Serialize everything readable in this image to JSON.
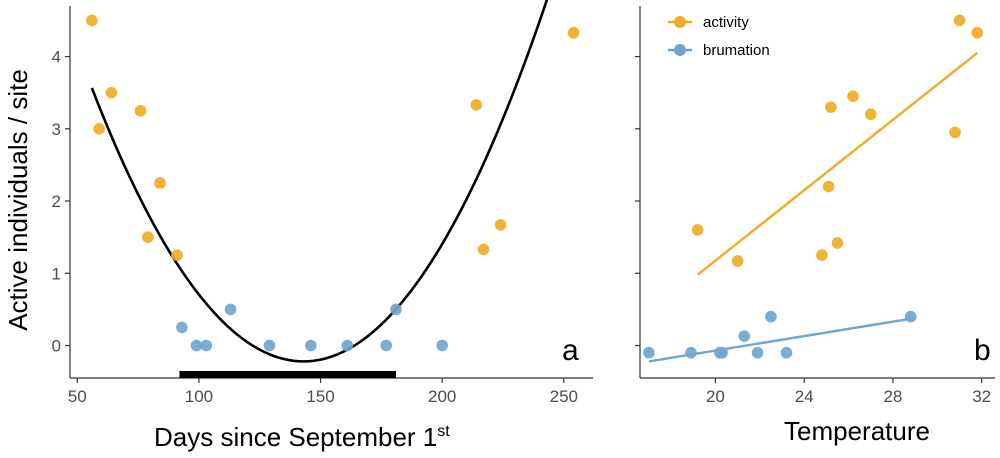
{
  "colors": {
    "activity": "#efac24",
    "brumation": "#6fa5d0",
    "fit": "#000000",
    "bar": "#000000"
  },
  "chart_data": [
    {
      "type": "scatter",
      "panel_label": "a",
      "xlabel_main": "Days since September 1",
      "xlabel_sup": "st",
      "ylabel": "Active individuals / site",
      "xlim": [
        47,
        262
      ],
      "ylim": [
        -0.45,
        4.7
      ],
      "xticks": [
        50,
        100,
        150,
        200,
        250
      ],
      "yticks": [
        0,
        1,
        2,
        3,
        4
      ],
      "grid": false,
      "series": [
        {
          "group": "activity",
          "points": [
            [
              56,
              4.5
            ],
            [
              59,
              3.0
            ],
            [
              64,
              3.5
            ],
            [
              76,
              3.25
            ],
            [
              79,
              1.5
            ],
            [
              84,
              2.25
            ],
            [
              91,
              1.25
            ],
            [
              214,
              3.33
            ],
            [
              217,
              1.33
            ],
            [
              224,
              1.67
            ],
            [
              254,
              4.33
            ]
          ]
        },
        {
          "group": "brumation",
          "points": [
            [
              93,
              0.25
            ],
            [
              99,
              0.0
            ],
            [
              103,
              0.0
            ],
            [
              113,
              0.5
            ],
            [
              129,
              0.0
            ],
            [
              146,
              0.0
            ],
            [
              161,
              0.0
            ],
            [
              177,
              0.0
            ],
            [
              181,
              0.5
            ],
            [
              200,
              0.0
            ]
          ]
        }
      ],
      "fit": {
        "kind": "quadratic",
        "vertex_x": 143,
        "vertex_y": -0.22,
        "a": 0.0005,
        "x_range": [
          56,
          255
        ]
      },
      "period_bar": {
        "x_start": 92,
        "x_end": 181
      }
    },
    {
      "type": "scatter",
      "panel_label": "b",
      "xlabel": "Temperature",
      "xlim": [
        16.6,
        32.6
      ],
      "ylim": [
        -0.45,
        4.7
      ],
      "xticks": [
        20,
        24,
        28,
        32
      ],
      "yticks": [
        0,
        1,
        2,
        3,
        4
      ],
      "grid": false,
      "legend_position": "top-left",
      "legend": [
        {
          "key": "activity",
          "label": "activity"
        },
        {
          "key": "brumation",
          "label": "brumation"
        }
      ],
      "series": [
        {
          "group": "activity",
          "points": [
            [
              19.2,
              1.6
            ],
            [
              21.0,
              1.17
            ],
            [
              24.8,
              1.25
            ],
            [
              25.1,
              2.2
            ],
            [
              25.2,
              3.3
            ],
            [
              25.5,
              1.42
            ],
            [
              26.2,
              3.45
            ],
            [
              27.0,
              3.2
            ],
            [
              30.8,
              2.95
            ],
            [
              31.0,
              4.5
            ],
            [
              31.8,
              4.33
            ]
          ]
        },
        {
          "group": "brumation",
          "points": [
            [
              17.0,
              -0.1
            ],
            [
              18.9,
              -0.1
            ],
            [
              20.2,
              -0.1
            ],
            [
              20.3,
              -0.1
            ],
            [
              21.3,
              0.13
            ],
            [
              21.9,
              -0.1
            ],
            [
              22.5,
              0.4
            ],
            [
              23.2,
              -0.1
            ],
            [
              28.8,
              0.4
            ]
          ]
        }
      ],
      "fits": [
        {
          "group": "activity",
          "x": [
            19.2,
            31.8
          ],
          "y": [
            0.98,
            4.05
          ]
        },
        {
          "group": "brumation",
          "x": [
            17.0,
            28.8
          ],
          "y": [
            -0.22,
            0.37
          ]
        }
      ]
    }
  ]
}
